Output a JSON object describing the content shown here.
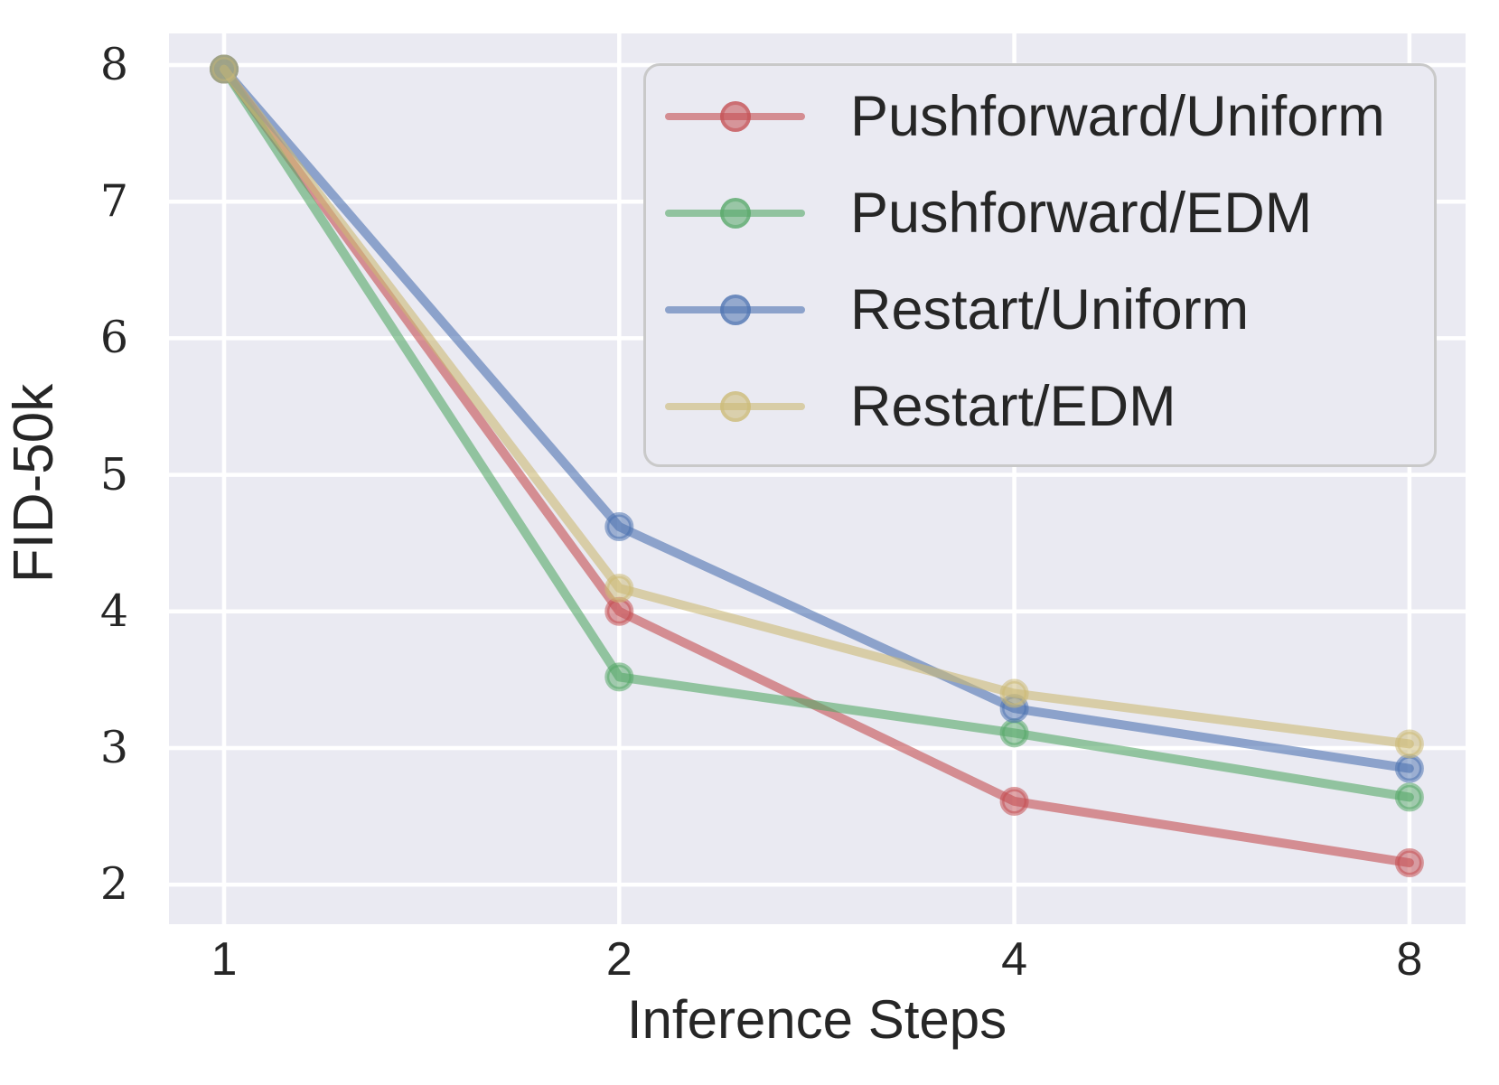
{
  "chart_data": {
    "type": "line",
    "title": "",
    "xlabel": "Inference Steps",
    "ylabel": "FID-50k",
    "x_scale": "log2",
    "x": [
      1,
      2,
      4,
      8
    ],
    "xticks": [
      1,
      2,
      4,
      8
    ],
    "yticks": [
      8,
      7,
      6,
      5,
      4,
      3,
      2
    ],
    "xlim": [
      0.91,
      8.84
    ],
    "ylim": [
      1.71,
      8.23
    ],
    "grid": true,
    "legend_position": "upper right",
    "series": [
      {
        "name": "Pushforward/Uniform",
        "color": "#C44E52",
        "values": [
          7.97,
          4.0,
          2.61,
          2.16
        ]
      },
      {
        "name": "Pushforward/EDM",
        "color": "#55A868",
        "values": [
          7.97,
          3.52,
          3.11,
          2.64
        ]
      },
      {
        "name": "Restart/Uniform",
        "color": "#4C72B0",
        "values": [
          7.97,
          4.62,
          3.29,
          2.85
        ]
      },
      {
        "name": "Restart/EDM",
        "color": "#CCB974",
        "values": [
          7.97,
          4.17,
          3.4,
          3.03
        ]
      }
    ],
    "style": {
      "axes_background": "#EAEAF2",
      "gridline_color": "#FFFFFF",
      "text_color": "#262626",
      "legend_border_color": "#c9c9c9",
      "line_alpha": 0.6
    }
  }
}
